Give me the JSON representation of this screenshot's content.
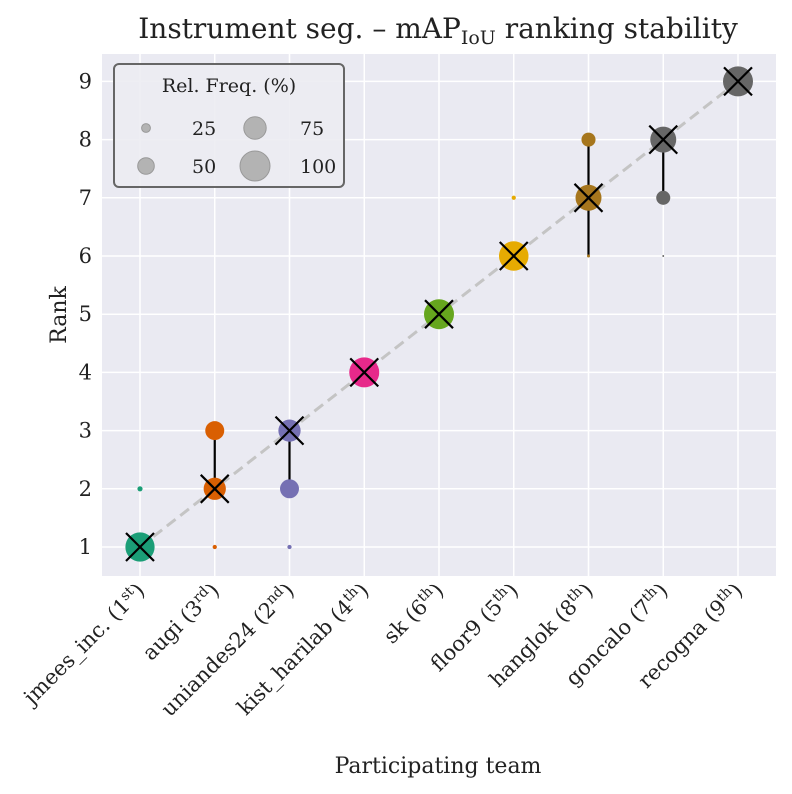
{
  "chart_data": {
    "type": "scatter",
    "title": "Instrument seg. – mAP",
    "title_subscript": "IoU",
    "title_suffix": " ranking stability",
    "xlabel": "Participating team",
    "ylabel": "Rank",
    "ylim": [
      0.55,
      9.45
    ],
    "y_ticks": [
      "1",
      "2",
      "3",
      "4",
      "5",
      "6",
      "7",
      "8",
      "9"
    ],
    "grid": true,
    "legend_position": "upper-left",
    "legend_title": "Rel. Freq. (%)",
    "legend_entries": [
      "25",
      "50",
      "75",
      "100"
    ],
    "teams": [
      {
        "name": "jmees_inc.",
        "place": "1",
        "sup": "st",
        "color": "#1b9e77",
        "rank": 1,
        "low": 1,
        "high": 1,
        "freq": [
          {
            "rank": 1,
            "pct": 95
          },
          {
            "rank": 2,
            "pct": 3
          }
        ]
      },
      {
        "name": "augi",
        "place": "3",
        "sup": "rd",
        "color": "#d95f02",
        "rank": 2,
        "low": 2,
        "high": 3,
        "freq": [
          {
            "rank": 3,
            "pct": 40
          },
          {
            "rank": 2,
            "pct": 55
          },
          {
            "rank": 1,
            "pct": 2
          }
        ]
      },
      {
        "name": "uniandes24",
        "place": "2",
        "sup": "nd",
        "color": "#7570b3",
        "rank": 3,
        "low": 2,
        "high": 3,
        "freq": [
          {
            "rank": 3,
            "pct": 55
          },
          {
            "rank": 2,
            "pct": 40
          },
          {
            "rank": 1,
            "pct": 2
          }
        ]
      },
      {
        "name": "kist_harilab",
        "place": "4",
        "sup": "th",
        "color": "#e7298a",
        "rank": 4,
        "low": 4,
        "high": 4,
        "freq": [
          {
            "rank": 4,
            "pct": 100
          }
        ]
      },
      {
        "name": "sk",
        "place": "6",
        "sup": "th",
        "color": "#66a61e",
        "rank": 5,
        "low": 5,
        "high": 5,
        "freq": [
          {
            "rank": 5,
            "pct": 100
          }
        ]
      },
      {
        "name": "floor9",
        "place": "5",
        "sup": "th",
        "color": "#e6ab02",
        "rank": 6,
        "low": 6,
        "high": 6,
        "freq": [
          {
            "rank": 7,
            "pct": 2
          },
          {
            "rank": 6,
            "pct": 97
          }
        ]
      },
      {
        "name": "hanglok",
        "place": "8",
        "sup": "th",
        "color": "#a6761d",
        "rank": 7,
        "low": 6,
        "high": 8,
        "freq": [
          {
            "rank": 8,
            "pct": 22
          },
          {
            "rank": 7,
            "pct": 75
          },
          {
            "rank": 6,
            "pct": 1
          }
        ]
      },
      {
        "name": "goncalo",
        "place": "7",
        "sup": "th",
        "color": "#666666",
        "rank": 8,
        "low": 7,
        "high": 8,
        "freq": [
          {
            "rank": 8,
            "pct": 75
          },
          {
            "rank": 7,
            "pct": 22
          },
          {
            "rank": 6,
            "pct": 0.4
          }
        ]
      },
      {
        "name": "recogna",
        "place": "9",
        "sup": "th",
        "color": "#666666",
        "rank": 9,
        "low": 9,
        "high": 9,
        "freq": [
          {
            "rank": 9,
            "pct": 100
          }
        ]
      }
    ]
  }
}
